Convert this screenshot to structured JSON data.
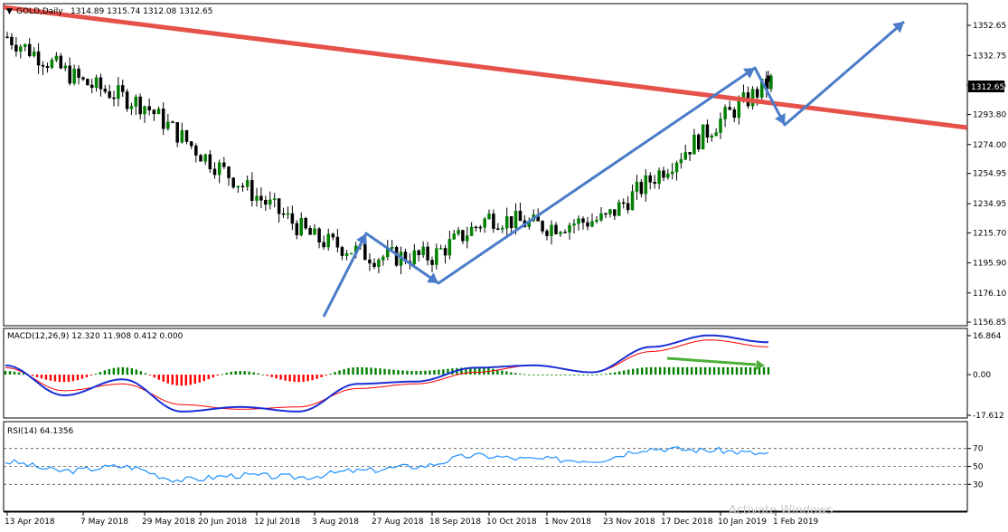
{
  "main": {
    "symbol_label": "GOLD,Daily",
    "ohlc_text": "1314.89 1315.74 1312.08 1312.65",
    "price_ticks": [
      "1352.65",
      "1332.75",
      "1313.15",
      "1293.80",
      "1274.00",
      "1254.95",
      "1234.95",
      "1215.70",
      "1195.90",
      "1176.10",
      "1156.85"
    ],
    "current_price": "1312.65"
  },
  "macd": {
    "label": "MACD(12,26,9) 12.320 11.908 0.412 0.000",
    "ticks": [
      "16.864",
      "0.00",
      "-17.612"
    ]
  },
  "rsi": {
    "label": "RSI(14) 64.1356",
    "ticks": [
      "70",
      "50",
      "30"
    ]
  },
  "time_axis": {
    "labels": [
      "13 Apr 2018",
      "7 May 2018",
      "29 May 2018",
      "20 Jun 2018",
      "12 Jul 2018",
      "3 Aug 2018",
      "27 Aug 2018",
      "18 Sep 2018",
      "10 Oct 2018",
      "1 Nov 2018",
      "23 Nov 2018",
      "17 Dec 2018",
      "10 Jan 2019",
      "1 Feb 2019"
    ]
  },
  "watermark": "Activate Windows",
  "colors": {
    "up_candle": "#008000",
    "down_candle": "#000000",
    "trendline": "#e6514a",
    "arrows": "#4a7cc9",
    "macd_line": "#1a2fd6",
    "signal_line": "#ff0000",
    "hist_up": "#008000",
    "hist_down": "#ff0000",
    "rsi_line": "#1e90ff",
    "divergence_arrow": "#4caf38"
  },
  "chart_data": [
    {
      "type": "candlestick",
      "title": "GOLD,Daily",
      "x": [
        "13 Apr 2018",
        "7 May 2018",
        "29 May 2018",
        "20 Jun 2018",
        "12 Jul 2018",
        "3 Aug 2018",
        "27 Aug 2018",
        "18 Sep 2018",
        "10 Oct 2018",
        "1 Nov 2018",
        "23 Nov 2018",
        "17 Dec 2018",
        "10 Jan 2019",
        "1 Feb 2019"
      ],
      "close": [
        1345,
        1315,
        1300,
        1268,
        1240,
        1212,
        1200,
        1200,
        1226,
        1220,
        1225,
        1258,
        1290,
        1318
      ],
      "last_close": 1312.65,
      "ylim": [
        1156.85,
        1372
      ],
      "y_ticks": [
        1352.65,
        1332.75,
        1313.15,
        1293.8,
        1274.0,
        1254.95,
        1234.95,
        1215.7,
        1195.9,
        1176.1,
        1156.85
      ]
    },
    {
      "type": "line",
      "title": "MACD(12,26,9) 12.320 11.908 0.412 0.000",
      "series": [
        {
          "name": "MACD",
          "values": [
            4,
            -9,
            -2,
            -16,
            -14,
            -16,
            -4,
            -3,
            3,
            4,
            1,
            12,
            17,
            14
          ]
        },
        {
          "name": "Signal",
          "values": [
            3,
            -7,
            -4,
            -13,
            -15,
            -14,
            -6,
            -4,
            1,
            4,
            1,
            10,
            15,
            12
          ]
        }
      ],
      "ylim": [
        -17.612,
        16.864
      ]
    },
    {
      "type": "line",
      "title": "RSI(14) 64.1356",
      "series": [
        {
          "name": "RSI",
          "values": [
            55,
            45,
            50,
            35,
            40,
            38,
            45,
            50,
            62,
            58,
            57,
            70,
            68,
            64
          ]
        }
      ],
      "levels": [
        70,
        50,
        30
      ],
      "ylim": [
        0,
        100
      ]
    }
  ]
}
